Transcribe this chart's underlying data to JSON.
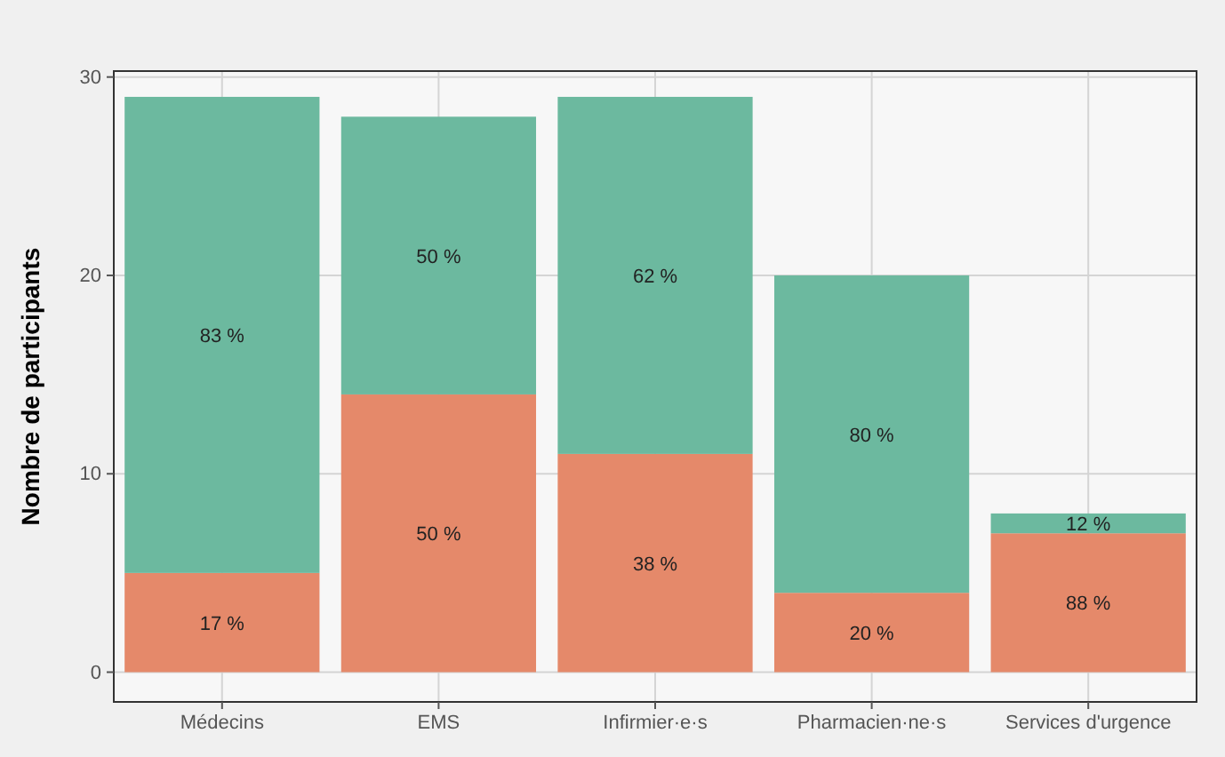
{
  "chart_data": {
    "type": "bar",
    "ylabel": "Nombre de participants",
    "categories": [
      "Médecins",
      "EMS",
      "Infirmier·e·s",
      "Pharmacien·ne·s",
      "Services d'urgence"
    ],
    "stacked": true,
    "series": [
      {
        "color": "#e5896a",
        "values": [
          5,
          14,
          11,
          4,
          7
        ]
      },
      {
        "color": "#6cb99f",
        "values": [
          24,
          14,
          18,
          16,
          1
        ]
      }
    ],
    "annotations": [
      "17 %",
      "50 %",
      "38 %",
      "20 %",
      "88 %",
      "83 %",
      "50 %",
      "62 %",
      "80 %",
      "12 %"
    ],
    "ylim": [
      -1.5,
      30.3
    ],
    "yticks": [
      0,
      10,
      20,
      30
    ],
    "grid": true
  }
}
